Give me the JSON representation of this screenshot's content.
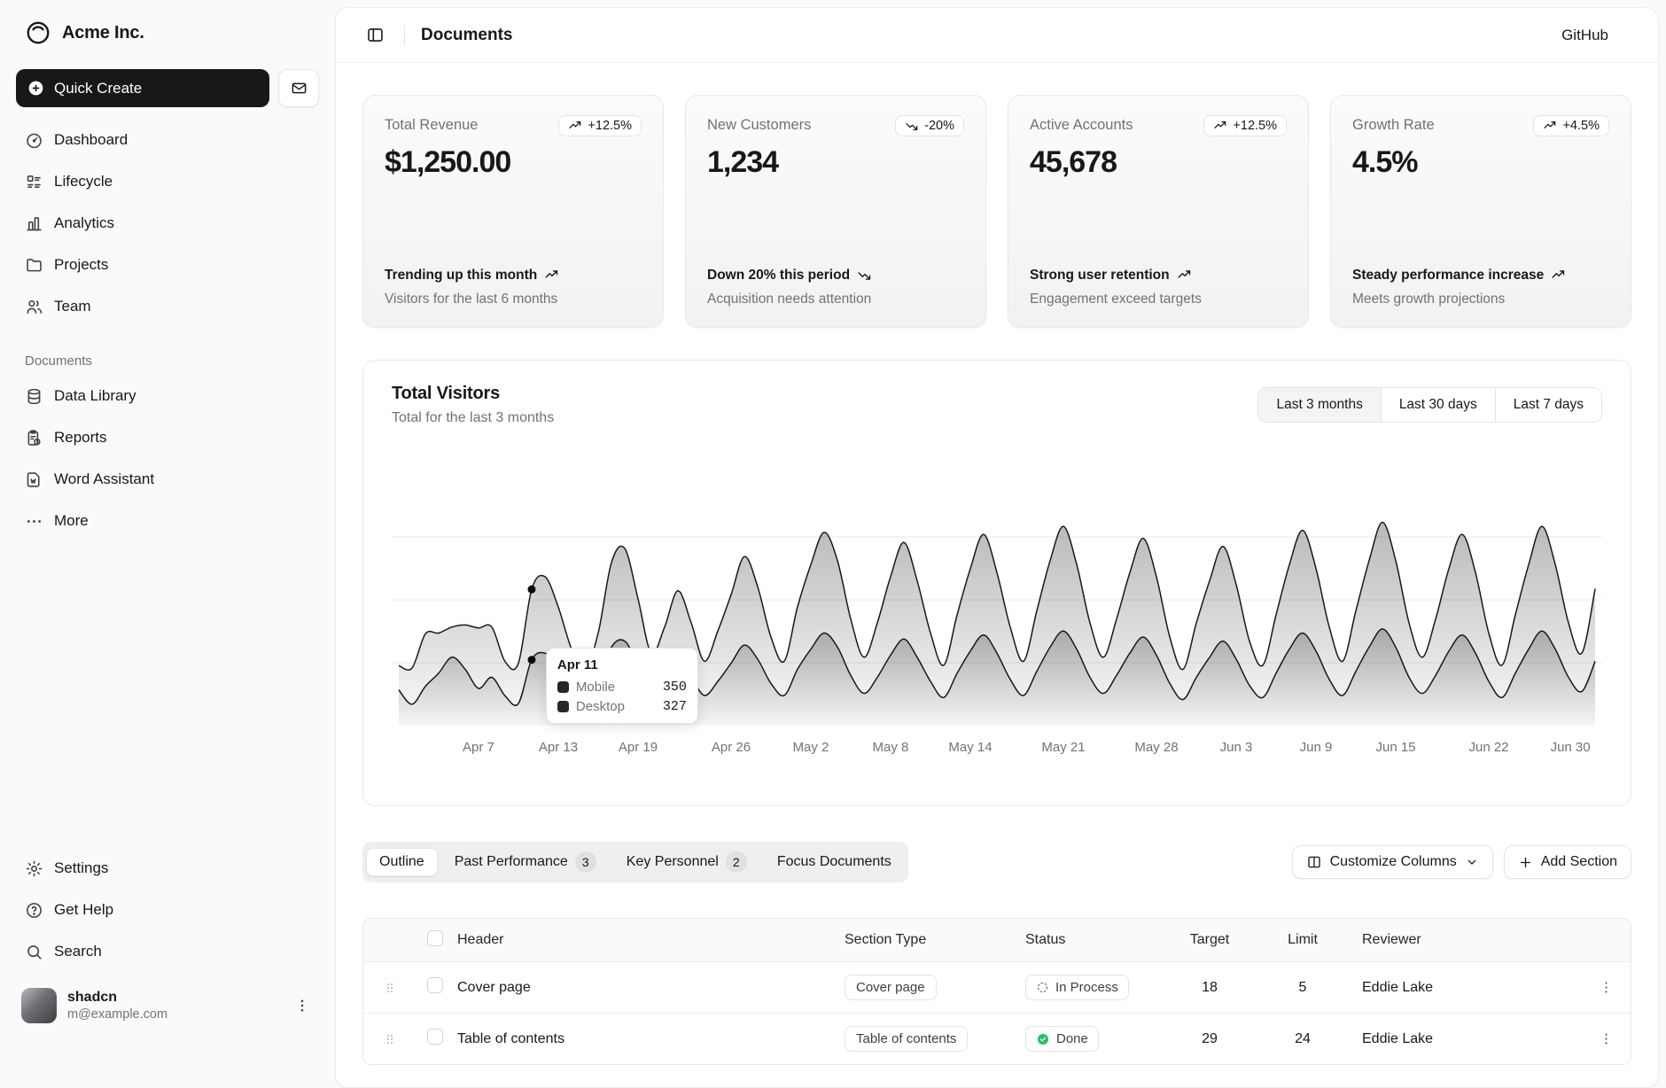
{
  "brand": {
    "name": "Acme Inc."
  },
  "sidebar": {
    "quick_create_label": "Quick Create",
    "nav": [
      {
        "icon": "dashboard-icon",
        "label": "Dashboard"
      },
      {
        "icon": "lifecycle-icon",
        "label": "Lifecycle"
      },
      {
        "icon": "analytics-icon",
        "label": "Analytics"
      },
      {
        "icon": "folder-icon",
        "label": "Projects"
      },
      {
        "icon": "users-icon",
        "label": "Team"
      }
    ],
    "documents_section": {
      "label": "Documents",
      "items": [
        {
          "icon": "database-icon",
          "label": "Data Library"
        },
        {
          "icon": "report-icon",
          "label": "Reports"
        },
        {
          "icon": "word-file-icon",
          "label": "Word Assistant"
        },
        {
          "icon": "ellipsis-icon",
          "label": "More"
        }
      ]
    },
    "footer_items": [
      {
        "icon": "gear-icon",
        "label": "Settings"
      },
      {
        "icon": "help-icon",
        "label": "Get Help"
      },
      {
        "icon": "search-icon",
        "label": "Search"
      }
    ],
    "user": {
      "name": "shadcn",
      "email": "m@example.com"
    }
  },
  "header": {
    "title": "Documents",
    "github_label": "GitHub"
  },
  "stats": [
    {
      "label": "Total Revenue",
      "value": "$1,250.00",
      "badge": "+12.5%",
      "trend": "up",
      "footer_title": "Trending up this month",
      "footer_sub": "Visitors for the last 6 months"
    },
    {
      "label": "New Customers",
      "value": "1,234",
      "badge": "-20%",
      "trend": "down",
      "footer_title": "Down 20% this period",
      "footer_sub": "Acquisition needs attention"
    },
    {
      "label": "Active Accounts",
      "value": "45,678",
      "badge": "+12.5%",
      "trend": "up",
      "footer_title": "Strong user retention",
      "footer_sub": "Engagement exceed targets"
    },
    {
      "label": "Growth Rate",
      "value": "4.5%",
      "badge": "+4.5%",
      "trend": "up",
      "footer_title": "Steady performance increase",
      "footer_sub": "Meets growth projections"
    }
  ],
  "chart": {
    "title": "Total Visitors",
    "subtitle": "Total for the last 3 months",
    "ranges": [
      "Last 3 months",
      "Last 30 days",
      "Last 7 days"
    ],
    "active_range": "Last 3 months",
    "tooltip": {
      "date": "Apr 11",
      "rows": [
        {
          "label": "Mobile",
          "value": "350"
        },
        {
          "label": "Desktop",
          "value": "327"
        }
      ]
    }
  },
  "chart_data": {
    "type": "area",
    "title": "Total Visitors",
    "subtitle": "Total for the last 3 months",
    "stacked": true,
    "grid": "horizontal",
    "legend_position": "tooltip-only",
    "x_range": [
      "Apr 1",
      "Jun 30"
    ],
    "ylim": [
      0,
      1250
    ],
    "colors": {
      "stroke": "#18181b",
      "fill_top": "rgba(24,24,27,0.30)",
      "fill_bottom": "rgba(24,24,27,0.02)"
    },
    "xticks": [
      {
        "label": "Apr 7",
        "day": 7
      },
      {
        "label": "Apr 13",
        "day": 13
      },
      {
        "label": "Apr 19",
        "day": 19
      },
      {
        "label": "Apr 26",
        "day": 26
      },
      {
        "label": "May 2",
        "day": 32
      },
      {
        "label": "May 8",
        "day": 38
      },
      {
        "label": "May 14",
        "day": 44
      },
      {
        "label": "May 21",
        "day": 51
      },
      {
        "label": "May 28",
        "day": 58
      },
      {
        "label": "Jun 3",
        "day": 64
      },
      {
        "label": "Jun 9",
        "day": 70
      },
      {
        "label": "Jun 15",
        "day": 76
      },
      {
        "label": "Jun 22",
        "day": 83
      },
      {
        "label": "Jun 30",
        "day": 91
      }
    ],
    "hover": {
      "index": 10,
      "date": "Apr 11",
      "mobile": 350,
      "desktop": 327
    },
    "series": [
      {
        "name": "Desktop",
        "values": [
          178,
          106,
          195,
          260,
          340,
          280,
          185,
          240,
          148,
          110,
          327,
          360,
          290,
          180,
          120,
          210,
          390,
          420,
          300,
          170,
          230,
          320,
          240,
          150,
          220,
          310,
          400,
          330,
          210,
          150,
          280,
          380,
          460,
          390,
          250,
          160,
          240,
          350,
          430,
          340,
          220,
          140,
          260,
          370,
          450,
          360,
          230,
          150,
          270,
          390,
          470,
          380,
          240,
          160,
          250,
          360,
          440,
          350,
          210,
          130,
          240,
          340,
          420,
          330,
          200,
          140,
          260,
          380,
          460,
          370,
          230,
          150,
          270,
          390,
          480,
          390,
          240,
          160,
          250,
          370,
          450,
          360,
          220,
          140,
          260,
          380,
          470,
          380,
          240,
          170,
          320
        ]
      },
      {
        "name": "Mobile",
        "values": [
          120,
          180,
          260,
          200,
          150,
          220,
          300,
          250,
          170,
          200,
          350,
          380,
          300,
          200,
          160,
          250,
          420,
          460,
          330,
          190,
          260,
          350,
          270,
          170,
          250,
          340,
          440,
          360,
          230,
          170,
          310,
          420,
          500,
          430,
          280,
          180,
          270,
          390,
          480,
          380,
          240,
          160,
          290,
          410,
          500,
          400,
          260,
          170,
          300,
          430,
          520,
          420,
          270,
          180,
          280,
          400,
          490,
          390,
          230,
          150,
          270,
          380,
          470,
          370,
          220,
          160,
          290,
          420,
          510,
          410,
          260,
          170,
          300,
          430,
          530,
          430,
          270,
          180,
          280,
          410,
          500,
          400,
          240,
          160,
          290,
          420,
          520,
          420,
          270,
          190,
          360
        ]
      }
    ]
  },
  "tabs": [
    {
      "label": "Outline"
    },
    {
      "label": "Past Performance",
      "badge": "3"
    },
    {
      "label": "Key Personnel",
      "badge": "2"
    },
    {
      "label": "Focus Documents"
    }
  ],
  "toolbar": {
    "customize_label": "Customize Columns",
    "add_label": "Add Section"
  },
  "table": {
    "columns": {
      "header": "Header",
      "section_type": "Section Type",
      "status": "Status",
      "target": "Target",
      "limit": "Limit",
      "reviewer": "Reviewer"
    },
    "rows": [
      {
        "header": "Cover page",
        "section_type": "Cover page",
        "status": "In Process",
        "target": "18",
        "limit": "5",
        "reviewer": "Eddie Lake"
      },
      {
        "header": "Table of contents",
        "section_type": "Table of contents",
        "status": "Done",
        "target": "29",
        "limit": "24",
        "reviewer": "Eddie Lake"
      }
    ]
  }
}
